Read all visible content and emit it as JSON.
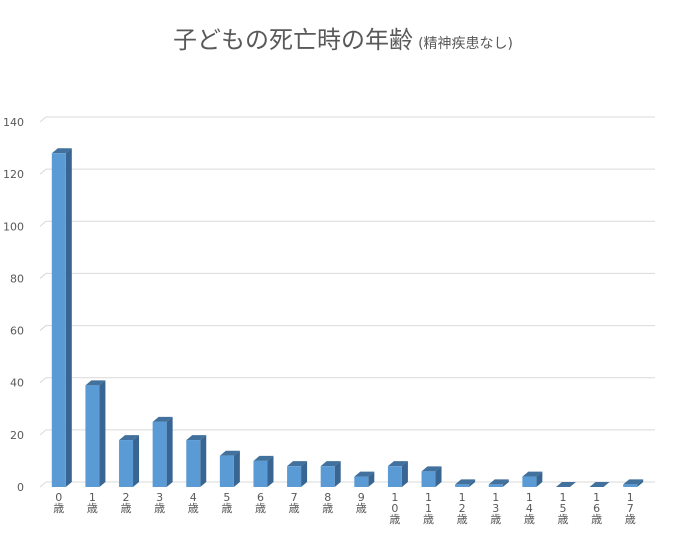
{
  "chart_data": {
    "type": "bar",
    "title": "子どもの死亡時の年齢",
    "subtitle": "(精神疾患なし)",
    "xlabel": "",
    "ylabel": "",
    "ylim": [
      0,
      140
    ],
    "yticks": [
      0,
      20,
      40,
      60,
      80,
      100,
      120,
      140
    ],
    "grid": true,
    "style": "3d-column",
    "bar_color": "#5B9BD5",
    "categories": [
      "0歳",
      "1歳",
      "2歳",
      "3歳",
      "4歳",
      "5歳",
      "6歳",
      "7歳",
      "8歳",
      "9歳",
      "10歳",
      "11歳",
      "12歳",
      "13歳",
      "14歳",
      "15歳",
      "16歳",
      "17歳"
    ],
    "values": [
      128,
      39,
      18,
      25,
      18,
      12,
      10,
      8,
      8,
      4,
      8,
      6,
      1,
      1,
      4,
      0,
      0,
      1
    ]
  }
}
